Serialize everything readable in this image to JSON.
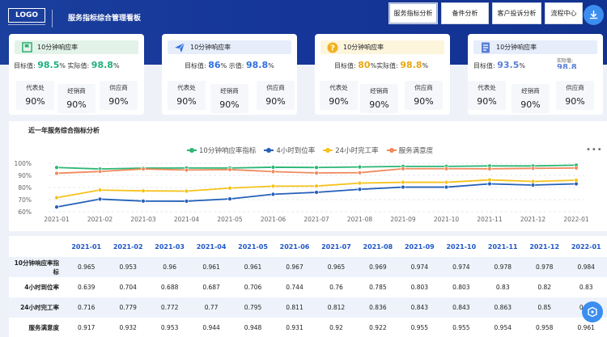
{
  "header": {
    "logo": "LOGO",
    "title": "服务指标综合管理看板",
    "tabs": [
      {
        "label": "服务指标分析",
        "active": true
      },
      {
        "label": "备件分析",
        "active": false
      },
      {
        "label": "客户投诉分析",
        "active": false
      },
      {
        "label": "流程中心",
        "active": false
      }
    ]
  },
  "cards": [
    {
      "title": "10分钟响应率",
      "icon": "flag-icon",
      "head_color": "#e3f3ea",
      "icon_color": "#2fb070",
      "target_label": "目标值:",
      "target": "98.5",
      "actual_label": "实际值:",
      "actual": "98.8",
      "unit": "%",
      "value_color": "#1fb07a",
      "subs": [
        {
          "k": "代表处",
          "v": "90%"
        },
        {
          "k": "经销商",
          "v": "90%"
        },
        {
          "k": "供应商",
          "v": "90%"
        }
      ]
    },
    {
      "title": "10分钟响应率",
      "icon": "send-icon",
      "head_color": "#e6edfb",
      "icon_color": "#2f6fe0",
      "target_label": "目标值:",
      "target": "86",
      "actual_label": "示值:",
      "actual": "98.8",
      "unit": "%",
      "value_color": "#2f6fe0",
      "subs": [
        {
          "k": "代表处",
          "v": "90%"
        },
        {
          "k": "经销商",
          "v": "90%"
        },
        {
          "k": "供应商",
          "v": "90%"
        }
      ]
    },
    {
      "title": "10分钟响应率",
      "icon": "question-icon",
      "head_color": "#fdf5dc",
      "icon_color": "#f2b01e",
      "target_label": "目标值:",
      "target": "80",
      "actual_label": "%实际值:",
      "actual": "98.8",
      "unit": "%",
      "value_color": "#e8a813",
      "subs": [
        {
          "k": "代表处",
          "v": "90%"
        },
        {
          "k": "经销商",
          "v": "90%"
        },
        {
          "k": "供应商",
          "v": "90%"
        }
      ]
    },
    {
      "title": "10分钟响应率",
      "icon": "document-icon",
      "head_color": "#e6edfb",
      "icon_color": "#5b7fd6",
      "target_label": "目标值:",
      "target": "93.5",
      "actual_label": "实际值:",
      "actual": "98.8",
      "unit": "%",
      "value_color": "#5b7fd6",
      "subs": [
        {
          "k": "代表处",
          "v": "90%"
        },
        {
          "k": "经销商",
          "v": "90%"
        },
        {
          "k": "供应商",
          "v": "90%"
        }
      ]
    }
  ],
  "chart_section": {
    "title": "近一年服务综合指标分析",
    "more": "•••"
  },
  "chart_data": {
    "type": "line",
    "x": [
      "2021-01",
      "2021-02",
      "2021-03",
      "2021-04",
      "2021-05",
      "2021-06",
      "2021-07",
      "2021-08",
      "2021-09",
      "2021-10",
      "2021-11",
      "2021-12",
      "2022-01"
    ],
    "ylim": [
      60,
      100
    ],
    "yticks": [
      "60%",
      "70%",
      "80%",
      "90%",
      "100%"
    ],
    "grid": true,
    "legend_position": "top",
    "series": [
      {
        "name": "10分钟响应率指标",
        "color": "#2bb673",
        "values": [
          96.5,
          95.3,
          96,
          96.1,
          96.1,
          96.7,
          96.5,
          96.9,
          97.4,
          97.4,
          97.8,
          97.8,
          98.4
        ]
      },
      {
        "name": "4小时到位率",
        "color": "#2560b8",
        "values": [
          63.9,
          70.4,
          68.8,
          68.7,
          70.6,
          74.4,
          76,
          78.5,
          80.3,
          80.3,
          83,
          82,
          83
        ]
      },
      {
        "name": "24小时完工率",
        "color": "#f5c21b",
        "values": [
          71.6,
          77.9,
          77.2,
          77,
          79.5,
          81.1,
          81.2,
          83.6,
          84.3,
          84.3,
          86.3,
          85,
          86
        ]
      },
      {
        "name": "服务满意度",
        "color": "#f08a5d",
        "values": [
          91.7,
          93.2,
          95.3,
          94.4,
          94.8,
          93.1,
          92,
          92.2,
          95.5,
          95.5,
          95.4,
          95.8,
          96.1
        ]
      }
    ]
  },
  "table": {
    "columns": [
      "2021-01",
      "2021-02",
      "2021-03",
      "2021-04",
      "2021-05",
      "2021-06",
      "2021-07",
      "2021-08",
      "2021-09",
      "2021-10",
      "2021-11",
      "2021-12",
      "2022-01"
    ],
    "rows": [
      {
        "label": "10分钟响应率指标",
        "values": [
          "0.965",
          "0.953",
          "0.96",
          "0.961",
          "0.961",
          "0.967",
          "0.965",
          "0.969",
          "0.974",
          "0.974",
          "0.978",
          "0.978",
          "0.984"
        ]
      },
      {
        "label": "4小时到位率",
        "values": [
          "0.639",
          "0.704",
          "0.688",
          "0.687",
          "0.706",
          "0.744",
          "0.76",
          "0.785",
          "0.803",
          "0.803",
          "0.83",
          "0.82",
          "0.83"
        ]
      },
      {
        "label": "24小时完工率",
        "values": [
          "0.716",
          "0.779",
          "0.772",
          "0.77",
          "0.795",
          "0.811",
          "0.812",
          "0.836",
          "0.843",
          "0.843",
          "0.863",
          "0.85",
          "0.86"
        ]
      },
      {
        "label": "服务满意度",
        "values": [
          "0.917",
          "0.932",
          "0.953",
          "0.944",
          "0.948",
          "0.931",
          "0.92",
          "0.922",
          "0.955",
          "0.955",
          "0.954",
          "0.958",
          "0.961"
        ]
      }
    ]
  }
}
